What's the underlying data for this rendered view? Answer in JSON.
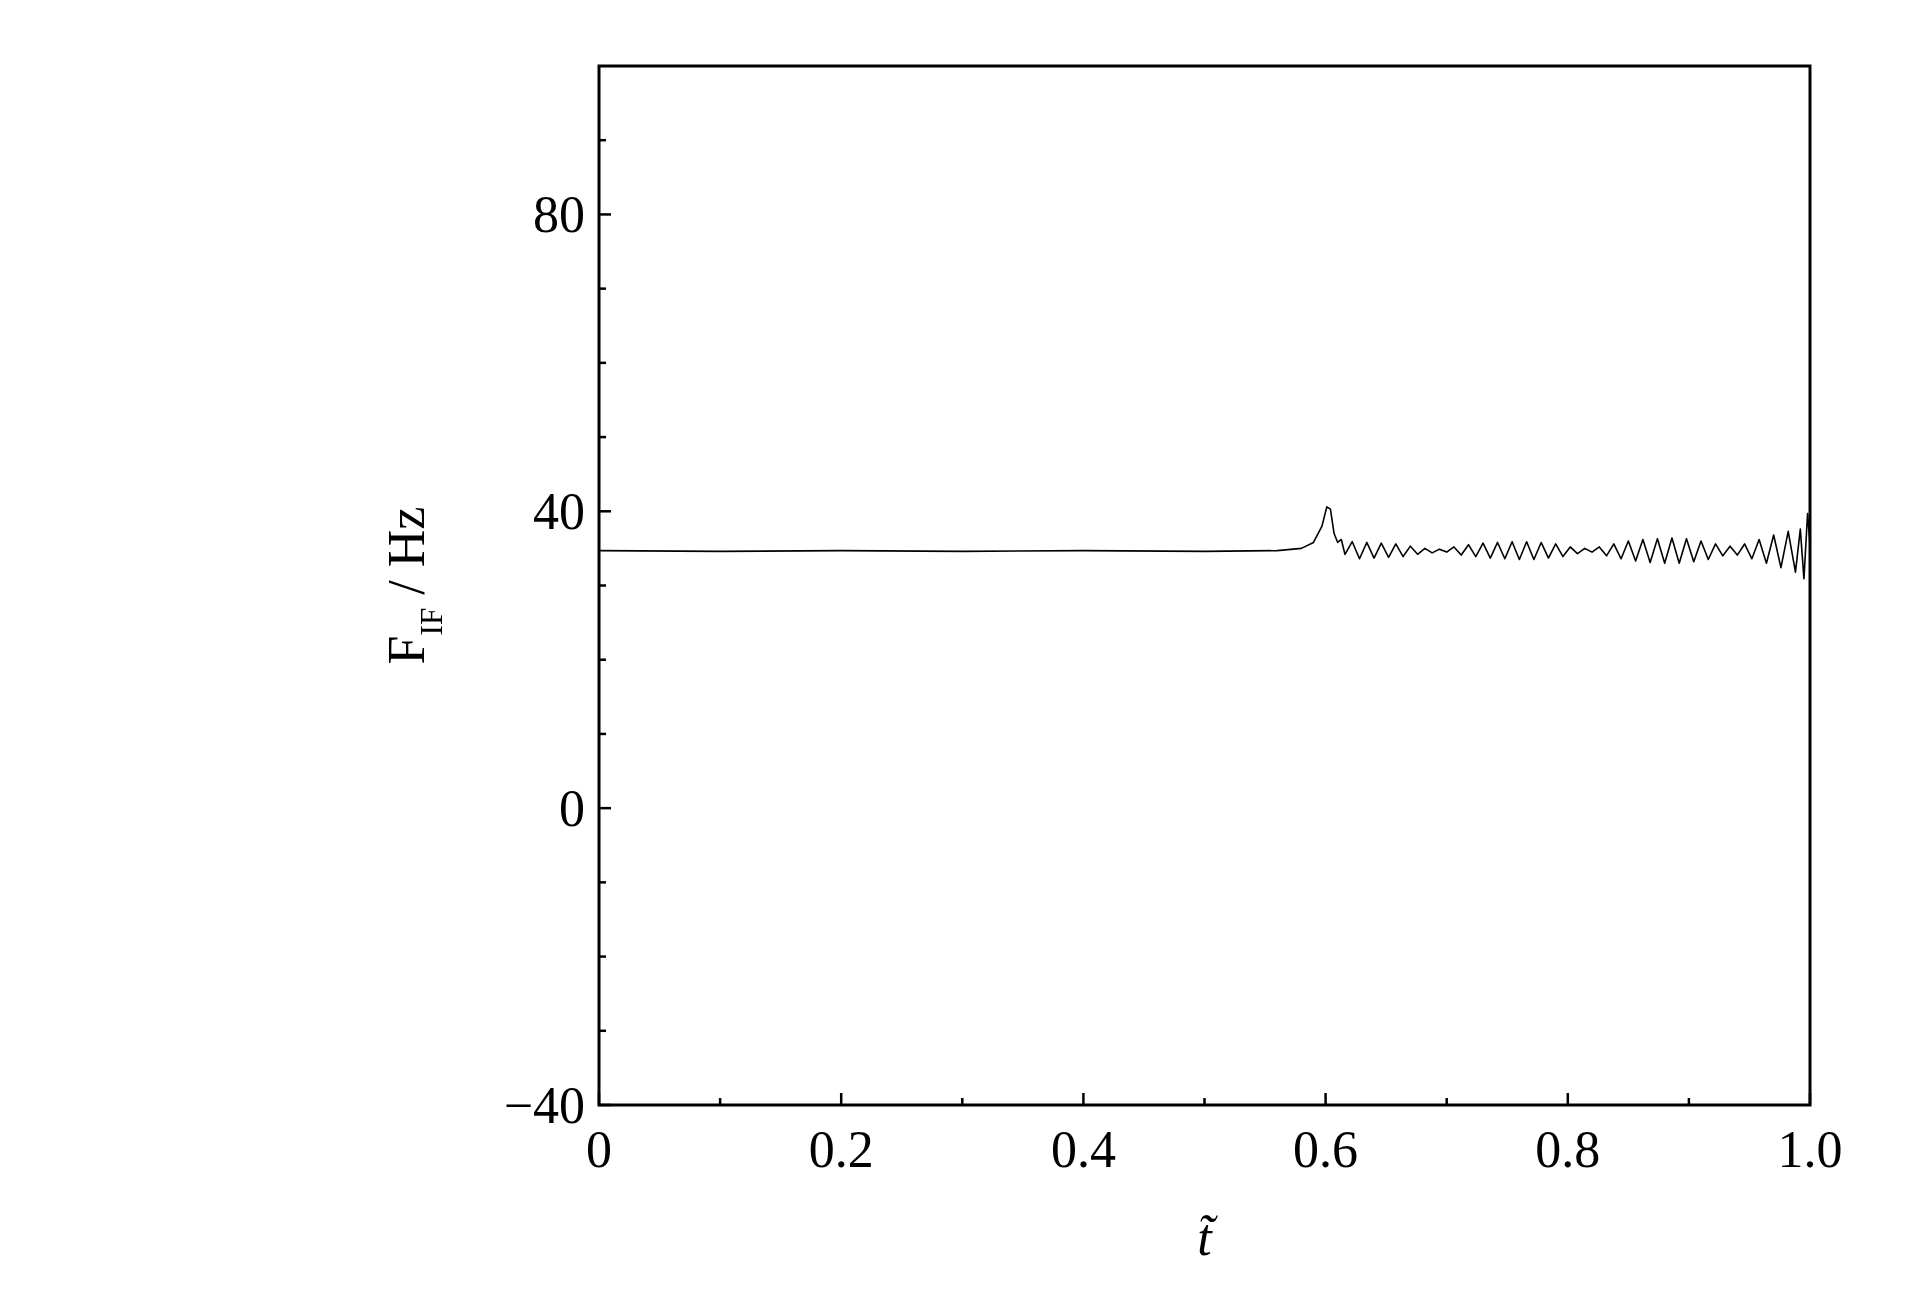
{
  "chart_data": {
    "type": "line",
    "xlabel": "t̃",
    "ylabel": "F$_{IF}$ / Hz",
    "xlim": [
      0,
      1.0
    ],
    "ylim": [
      -40,
      100
    ],
    "xticks": [
      0,
      {
        "value": 0.1,
        "label": null
      },
      0.2,
      {
        "value": 0.3,
        "label": null
      },
      0.4,
      {
        "value": 0.5,
        "label": null
      },
      0.6,
      {
        "value": 0.7,
        "label": null
      },
      0.8,
      {
        "value": 0.9,
        "label": null
      },
      {
        "value": 1.0,
        "label": "1.0"
      }
    ],
    "yticks": [
      -40,
      {
        "value": -30,
        "label": null
      },
      {
        "value": -20,
        "label": null
      },
      {
        "value": -10,
        "label": null
      },
      0,
      {
        "value": 10,
        "label": null
      },
      {
        "value": 20,
        "label": null
      },
      {
        "value": 30,
        "label": null
      },
      40,
      {
        "value": 50,
        "label": null
      },
      {
        "value": 60,
        "label": null
      },
      {
        "value": 70,
        "label": null
      },
      80,
      {
        "value": 90,
        "label": null
      }
    ],
    "series": [
      {
        "color": "#000000",
        "x": [
          0,
          0.1,
          0.2,
          0.3,
          0.4,
          0.5,
          0.56,
          0.58,
          0.59,
          0.597,
          0.601,
          0.604,
          0.607,
          0.61,
          0.613,
          0.616,
          0.622,
          0.628,
          0.634,
          0.64,
          0.646,
          0.652,
          0.658,
          0.664,
          0.67,
          0.676,
          0.682,
          0.688,
          0.694,
          0.7,
          0.706,
          0.712,
          0.718,
          0.724,
          0.73,
          0.736,
          0.742,
          0.748,
          0.754,
          0.76,
          0.766,
          0.772,
          0.778,
          0.784,
          0.79,
          0.796,
          0.802,
          0.808,
          0.814,
          0.82,
          0.826,
          0.832,
          0.838,
          0.844,
          0.85,
          0.856,
          0.862,
          0.868,
          0.874,
          0.88,
          0.886,
          0.892,
          0.898,
          0.904,
          0.91,
          0.916,
          0.922,
          0.928,
          0.934,
          0.94,
          0.946,
          0.952,
          0.958,
          0.964,
          0.97,
          0.976,
          0.982,
          0.988,
          0.992,
          0.995,
          0.998,
          1.0
        ],
        "values": [
          34.7,
          34.6,
          34.7,
          34.6,
          34.7,
          34.6,
          34.7,
          35.0,
          35.8,
          38.0,
          40.6,
          40.3,
          37.0,
          35.8,
          36.2,
          34.2,
          35.9,
          33.6,
          35.8,
          33.7,
          35.7,
          33.8,
          35.6,
          33.9,
          35.3,
          34.2,
          35.0,
          34.4,
          34.9,
          34.5,
          35.2,
          34.1,
          35.5,
          33.9,
          35.7,
          33.7,
          35.8,
          33.6,
          35.9,
          33.5,
          35.9,
          33.5,
          35.8,
          33.7,
          35.6,
          33.9,
          35.2,
          34.3,
          35.0,
          34.5,
          35.2,
          34.0,
          35.6,
          33.6,
          36.0,
          33.3,
          36.2,
          33.1,
          36.3,
          33.0,
          36.4,
          33.0,
          36.3,
          33.2,
          36.0,
          33.5,
          35.6,
          34.0,
          35.3,
          34.1,
          35.6,
          33.6,
          36.2,
          33.0,
          36.8,
          32.4,
          37.3,
          31.8,
          37.6,
          30.9,
          39.7,
          35.5
        ]
      }
    ]
  }
}
